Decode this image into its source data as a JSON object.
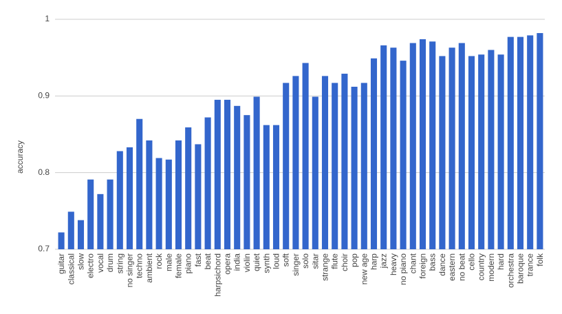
{
  "chart_data": {
    "type": "bar",
    "y_label": "accuracy",
    "color": "#3366cc",
    "categories": [
      "guitar",
      "classical",
      "slow",
      "electro",
      "vocal",
      "drum",
      "string",
      "no singer",
      "techno",
      "ambient",
      "rock",
      "male",
      "female",
      "piano",
      "fast",
      "beat",
      "harpsichord",
      "opera",
      "india",
      "violin",
      "quiet",
      "synth",
      "loud",
      "soft",
      "singer",
      "solo",
      "sitar",
      "strange",
      "flute",
      "choir",
      "pop",
      "new age",
      "harp",
      "jazz",
      "heavy",
      "no piano",
      "chant",
      "foreign",
      "bass",
      "dance",
      "eastern",
      "no beat",
      "cello",
      "country",
      "modern",
      "hard",
      "orchestra",
      "baroque",
      "trance",
      "folk"
    ],
    "values": [
      0.722,
      0.749,
      0.738,
      0.791,
      0.772,
      0.791,
      0.828,
      0.833,
      0.87,
      0.842,
      0.819,
      0.817,
      0.842,
      0.859,
      0.837,
      0.872,
      0.895,
      0.895,
      0.887,
      0.875,
      0.899,
      0.862,
      0.862,
      0.917,
      0.926,
      0.943,
      0.899,
      0.926,
      0.917,
      0.929,
      0.912,
      0.917,
      0.949,
      0.966,
      0.963,
      0.946,
      0.969,
      0.974,
      0.971,
      0.952,
      0.963,
      0.969,
      0.952,
      0.954,
      0.96,
      0.954,
      0.977,
      0.977,
      0.979,
      0.982
    ],
    "ylim": [
      0.7,
      1
    ],
    "yticks": [
      0.7,
      0.8,
      0.9,
      1
    ],
    "grid": true
  }
}
